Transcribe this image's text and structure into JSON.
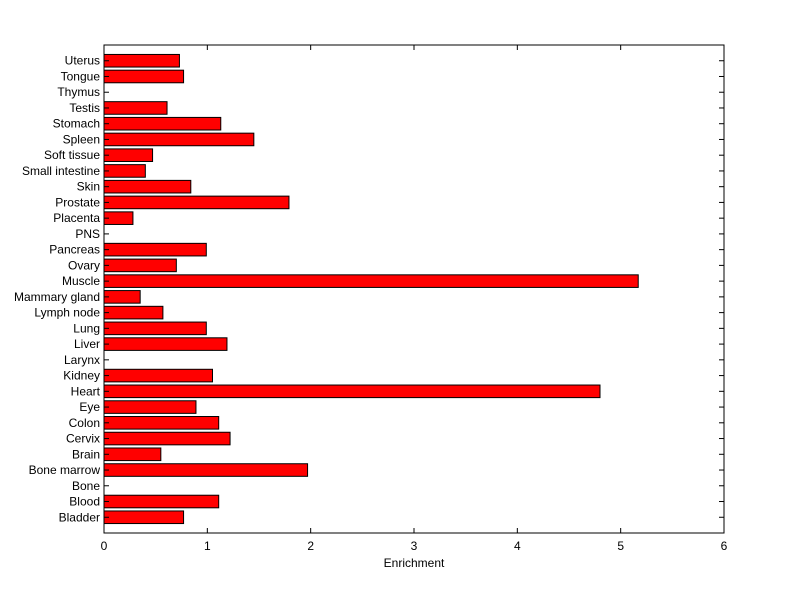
{
  "chart_data": {
    "type": "bar",
    "orientation": "horizontal",
    "title": "",
    "xlabel": "Enrichment",
    "ylabel": "",
    "xlim": [
      0,
      6
    ],
    "xticks": [
      0,
      1,
      2,
      3,
      4,
      5,
      6
    ],
    "grid": false,
    "legend": "none",
    "bar_color": "#ff0000",
    "bar_edge_color": "#000000",
    "categories": [
      "Bladder",
      "Blood",
      "Bone",
      "Bone marrow",
      "Brain",
      "Cervix",
      "Colon",
      "Eye",
      "Heart",
      "Kidney",
      "Larynx",
      "Liver",
      "Lung",
      "Lymph node",
      "Mammary gland",
      "Muscle",
      "Ovary",
      "Pancreas",
      "PNS",
      "Placenta",
      "Prostate",
      "Skin",
      "Small intestine",
      "Soft tissue",
      "Spleen",
      "Stomach",
      "Testis",
      "Thymus",
      "Tongue",
      "Uterus"
    ],
    "values": [
      0.77,
      1.11,
      0,
      1.97,
      0.55,
      1.22,
      1.11,
      0.89,
      4.8,
      1.05,
      0,
      1.19,
      0.99,
      0.57,
      0.35,
      5.17,
      0.7,
      0.99,
      0,
      0.28,
      1.79,
      0.84,
      0.4,
      0.47,
      1.45,
      1.13,
      0.61,
      0,
      0.77,
      0.73
    ]
  }
}
